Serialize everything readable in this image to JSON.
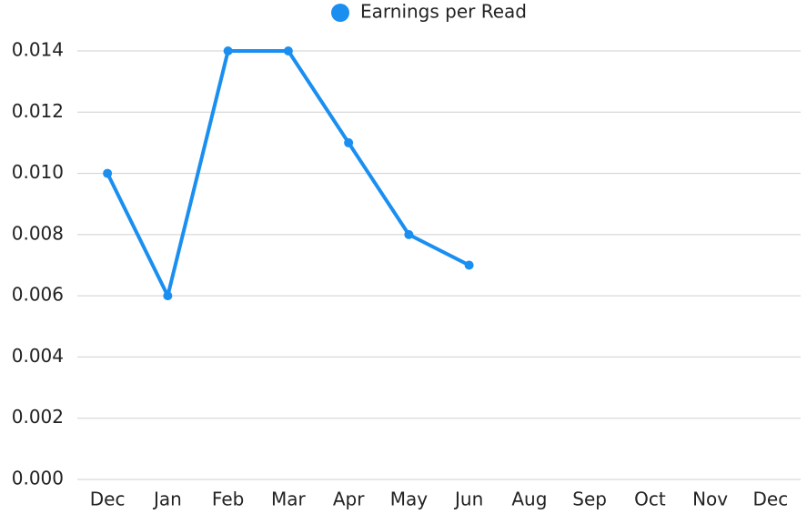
{
  "chart_data": {
    "type": "line",
    "categories": [
      "Dec",
      "Jan",
      "Feb",
      "Mar",
      "Apr",
      "May",
      "Jun",
      "Aug",
      "Sep",
      "Oct",
      "Nov",
      "Dec"
    ],
    "series": [
      {
        "name": "Earnings per Read",
        "color": "#1a8ff0",
        "values": [
          0.01,
          0.006,
          0.014,
          0.014,
          0.011,
          0.008,
          0.007,
          null,
          null,
          null,
          null,
          null
        ]
      }
    ],
    "ylim": [
      0,
      0.014
    ],
    "yticks": [
      {
        "value": 0,
        "label": "0.000"
      },
      0.002,
      0.004,
      0.006,
      0.008,
      {
        "value": 0.01,
        "label": "0.010"
      },
      0.012,
      0.014
    ],
    "grid": true,
    "legend": "top"
  }
}
